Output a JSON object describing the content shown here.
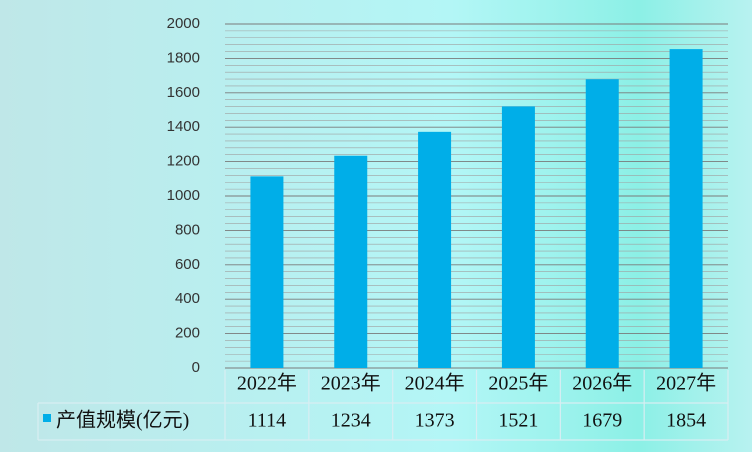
{
  "chart_data": {
    "type": "bar",
    "categories": [
      "2022年",
      "2023年",
      "2024年",
      "2025年",
      "2026年",
      "2027年"
    ],
    "series": [
      {
        "name": "产值规模(亿元)",
        "color": "#00aee8",
        "values": [
          1114,
          1234,
          1373,
          1521,
          1679,
          1854
        ]
      }
    ],
    "ylim": [
      0,
      2000
    ],
    "yticks": [
      0,
      200,
      400,
      600,
      800,
      1000,
      1200,
      1400,
      1600,
      1800,
      2000
    ],
    "grid": true,
    "minor_grid": true,
    "data_table": true
  }
}
